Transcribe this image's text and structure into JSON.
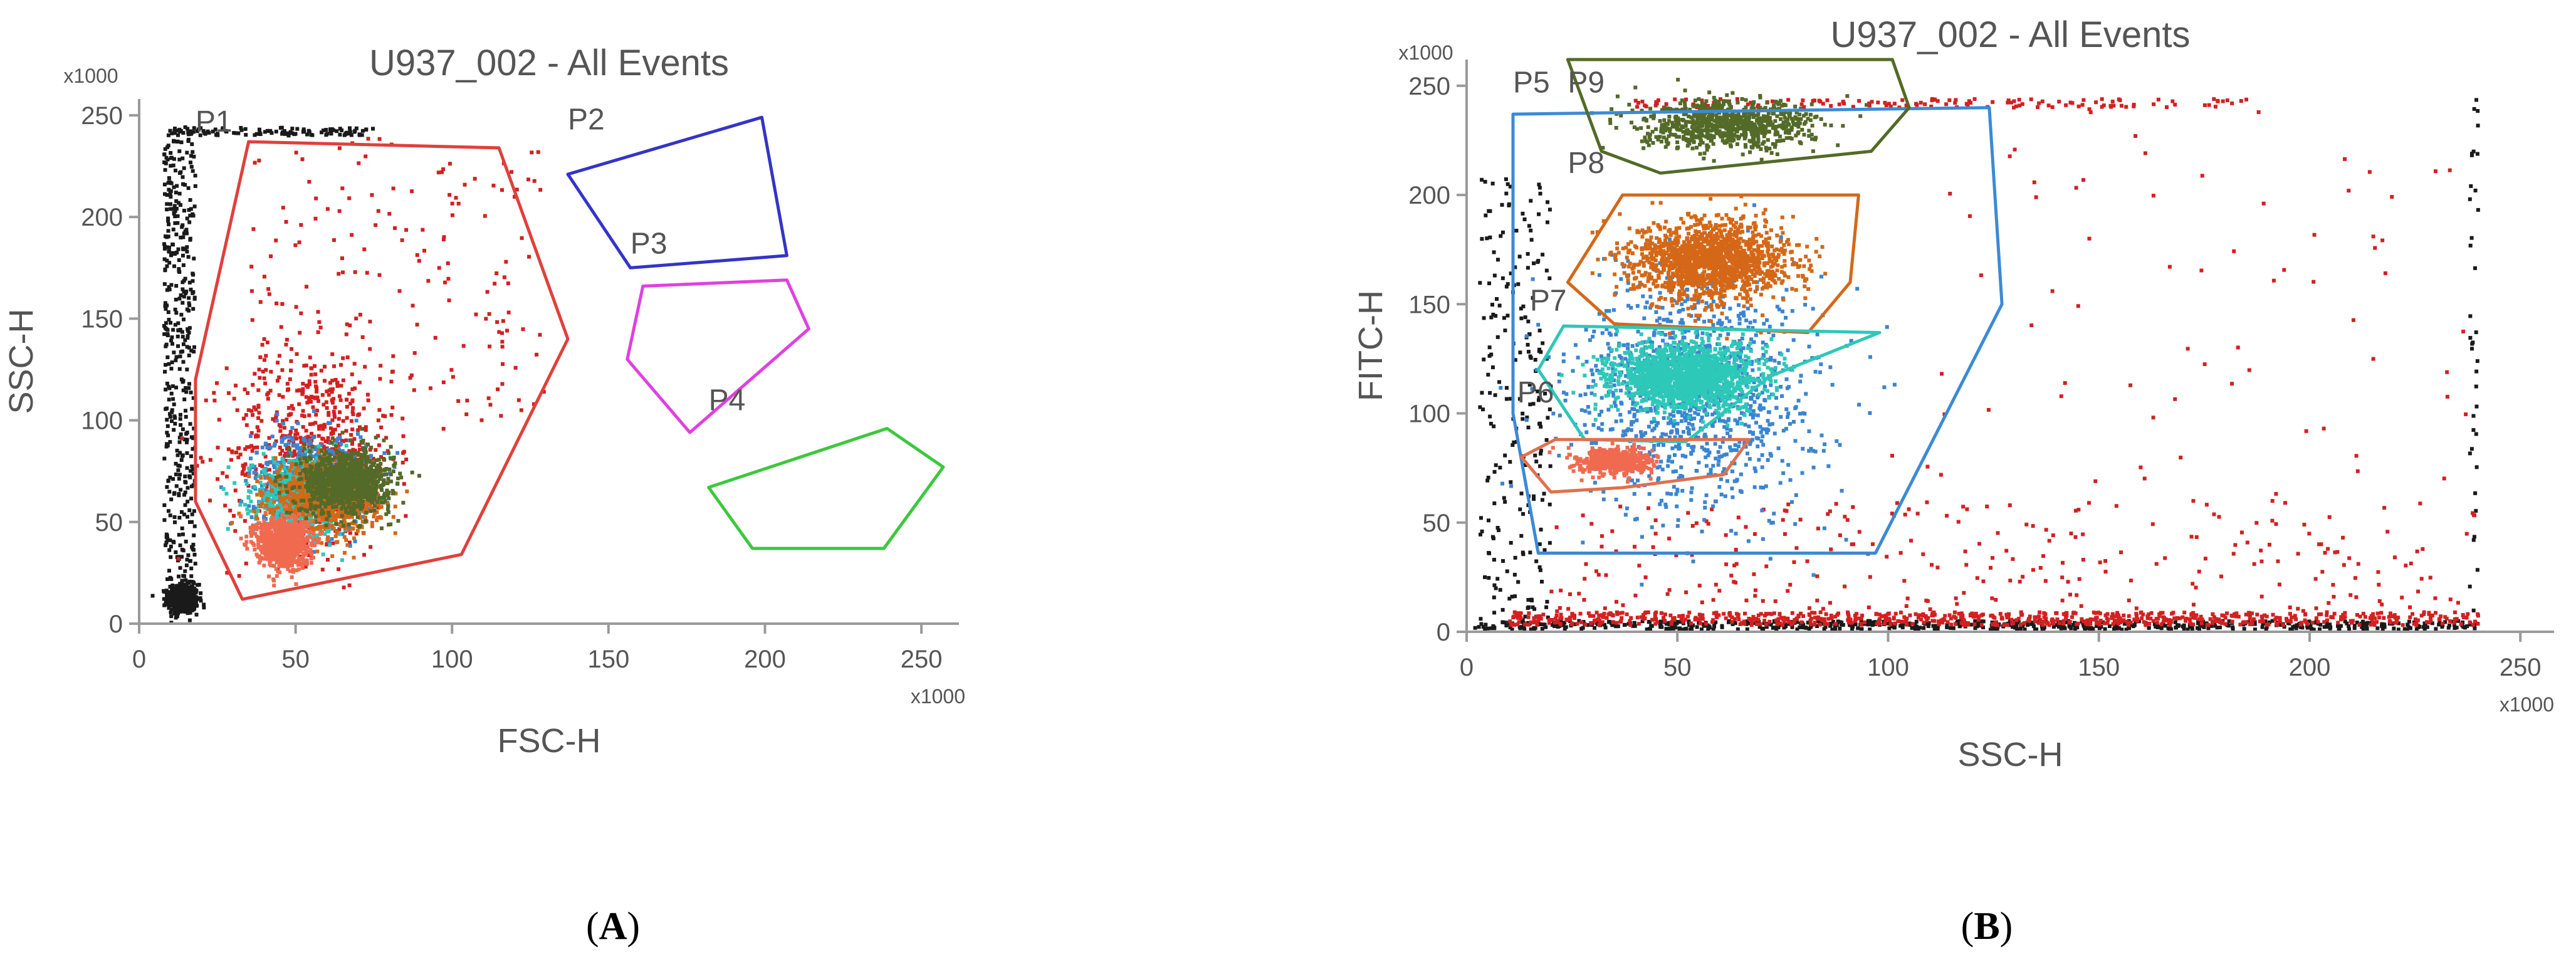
{
  "panels": {
    "A": {
      "label_letter": "A"
    },
    "B": {
      "label_letter": "B"
    }
  },
  "chart_data": [
    {
      "type": "scatter",
      "title": "U937_002 - All Events",
      "xlabel": "FSC-H",
      "ylabel": "SSC-H",
      "x_multiplier": "x1000",
      "y_multiplier": "x1000",
      "xlim": [
        0,
        262
      ],
      "ylim": [
        0,
        258
      ],
      "xticks": [
        0,
        50,
        100,
        150,
        200,
        250
      ],
      "yticks": [
        0,
        50,
        100,
        150,
        200,
        250
      ],
      "grid": false,
      "gates": [
        {
          "name": "P1",
          "color": "#e0403c",
          "label_at": [
            18,
            242
          ],
          "vertices": [
            [
              35,
              237
            ],
            [
              115,
              234
            ],
            [
              137,
              140
            ],
            [
              103,
              34
            ],
            [
              33,
              12
            ],
            [
              18,
              60
            ],
            [
              18,
              120
            ]
          ]
        },
        {
          "name": "P2",
          "color": "#3434c8",
          "label_at": [
            137,
            243
          ],
          "vertices": [
            [
              137,
              221
            ],
            [
              199,
              249
            ],
            [
              207,
              181
            ],
            [
              157,
              175
            ]
          ]
        },
        {
          "name": "P3",
          "color": "#e040e0",
          "label_at": [
            157,
            182
          ],
          "vertices": [
            [
              161,
              166
            ],
            [
              207,
              169
            ],
            [
              214,
              145
            ],
            [
              176,
              94
            ],
            [
              156,
              130
            ]
          ]
        },
        {
          "name": "P4",
          "color": "#3cc83c",
          "label_at": [
            182,
            105
          ],
          "vertices": [
            [
              182,
              67
            ],
            [
              239,
              96
            ],
            [
              257,
              77
            ],
            [
              238,
              37
            ],
            [
              196,
              37
            ]
          ]
        }
      ],
      "populations": [
        {
          "color": "#1a1a1a",
          "shape": "ellipse",
          "center": [
            14,
            12
          ],
          "spread": [
            4,
            6
          ],
          "count": 500
        },
        {
          "color": "#1a1a1a",
          "shape": "band",
          "x_range": [
            8,
            18
          ],
          "y_range": [
            10,
            245
          ],
          "count": 450
        },
        {
          "color": "#1a1a1a",
          "shape": "band",
          "x_range": [
            10,
            75
          ],
          "y_range": [
            240,
            244
          ],
          "count": 110
        },
        {
          "color": "#d42020",
          "shape": "ellipse",
          "center": [
            55,
            85
          ],
          "spread": [
            22,
            42
          ],
          "count": 650
        },
        {
          "color": "#d42020",
          "shape": "band",
          "x_range": [
            35,
            130
          ],
          "y_range": [
            100,
            240
          ],
          "count": 170
        },
        {
          "color": "#3b85d0",
          "shape": "ellipse",
          "center": [
            55,
            70
          ],
          "spread": [
            16,
            20
          ],
          "count": 650
        },
        {
          "color": "#2dc8b8",
          "shape": "ellipse",
          "center": [
            52,
            62
          ],
          "spread": [
            13,
            15
          ],
          "count": 800
        },
        {
          "color": "#d46818",
          "shape": "ellipse",
          "center": [
            60,
            62
          ],
          "spread": [
            14,
            14
          ],
          "count": 950
        },
        {
          "color": "#546a28",
          "shape": "ellipse",
          "center": [
            66,
            70
          ],
          "spread": [
            12,
            13
          ],
          "count": 950
        },
        {
          "color": "#f06a50",
          "shape": "ellipse",
          "center": [
            46,
            40
          ],
          "spread": [
            7,
            10
          ],
          "count": 850
        }
      ]
    },
    {
      "type": "scatter",
      "title": "U937_002 - All Events",
      "xlabel": "SSC-H",
      "ylabel": "FITC-H",
      "x_multiplier": "x1000",
      "y_multiplier": "x1000",
      "xlim": [
        0,
        258
      ],
      "ylim": [
        0,
        262
      ],
      "xticks": [
        0,
        50,
        100,
        150,
        200,
        250
      ],
      "yticks": [
        0,
        50,
        100,
        150,
        200,
        250
      ],
      "grid": false,
      "gates": [
        {
          "name": "P5",
          "color": "#3b8ad6",
          "label_at": [
            11,
            247
          ],
          "vertices": [
            [
              11,
              237
            ],
            [
              124,
              240
            ],
            [
              127,
              150
            ],
            [
              97,
              36
            ],
            [
              17,
              36
            ],
            [
              11,
              100
            ]
          ]
        },
        {
          "name": "P9",
          "color": "#546a28",
          "label_at": [
            24,
            247
          ],
          "vertices": [
            [
              24,
              262
            ],
            [
              101,
              262
            ],
            [
              105,
              240
            ],
            [
              96,
              220
            ],
            [
              46,
              210
            ],
            [
              32,
              220
            ]
          ]
        },
        {
          "name": "P8",
          "color": "#d46818",
          "label_at": [
            24,
            210
          ],
          "vertices": [
            [
              37,
              200
            ],
            [
              93,
              200
            ],
            [
              91,
              160
            ],
            [
              81,
              137
            ],
            [
              35,
              141
            ],
            [
              24,
              160
            ]
          ]
        },
        {
          "name": "P7",
          "color": "#2dc8b8",
          "label_at": [
            15,
            147
          ],
          "vertices": [
            [
              23,
              140
            ],
            [
              98,
              137
            ],
            [
              72,
              117
            ],
            [
              52,
              87
            ],
            [
              28,
              88
            ],
            [
              17,
              120
            ]
          ]
        },
        {
          "name": "P6",
          "color": "#e0704e",
          "label_at": [
            12,
            105
          ],
          "vertices": [
            [
              21,
              88
            ],
            [
              67,
              88
            ],
            [
              61,
              72
            ],
            [
              37,
              66
            ],
            [
              20,
              64
            ],
            [
              13,
              80
            ]
          ]
        }
      ],
      "populations": [
        {
          "color": "#1a1a1a",
          "shape": "band",
          "x_range": [
            2,
            240
          ],
          "y_range": [
            1,
            5
          ],
          "count": 650
        },
        {
          "color": "#1a1a1a",
          "shape": "band",
          "x_range": [
            3,
            20
          ],
          "y_range": [
            5,
            210
          ],
          "count": 220
        },
        {
          "color": "#1a1a1a",
          "shape": "band",
          "x_range": [
            238,
            240
          ],
          "y_range": [
            2,
            245
          ],
          "count": 40
        },
        {
          "color": "#d42020",
          "shape": "band",
          "x_range": [
            10,
            240
          ],
          "y_range": [
            3,
            9
          ],
          "count": 750
        },
        {
          "color": "#d42020",
          "shape": "band",
          "x_range": [
            20,
            240
          ],
          "y_range": [
            9,
            60
          ],
          "count": 260
        },
        {
          "color": "#d42020",
          "shape": "band",
          "x_range": [
            100,
            240
          ],
          "y_range": [
            60,
            245
          ],
          "count": 70
        },
        {
          "color": "#d42020",
          "shape": "band",
          "x_range": [
            40,
            185
          ],
          "y_range": [
            240,
            244
          ],
          "count": 140
        },
        {
          "color": "#3b85d0",
          "shape": "ellipse",
          "center": [
            55,
            110
          ],
          "spread": [
            24,
            45
          ],
          "count": 1100
        },
        {
          "color": "#546a28",
          "shape": "ellipse",
          "center": [
            62,
            232
          ],
          "spread": [
            17,
            9
          ],
          "count": 800
        },
        {
          "color": "#d46818",
          "shape": "ellipse",
          "center": [
            58,
            170
          ],
          "spread": [
            15,
            15
          ],
          "count": 1500
        },
        {
          "color": "#2dc8b8",
          "shape": "ellipse",
          "center": [
            52,
            117
          ],
          "spread": [
            14,
            12
          ],
          "count": 1500
        },
        {
          "color": "#f06a50",
          "shape": "ellipse",
          "center": [
            35,
            78
          ],
          "spread": [
            7,
            5
          ],
          "count": 550
        }
      ]
    }
  ]
}
